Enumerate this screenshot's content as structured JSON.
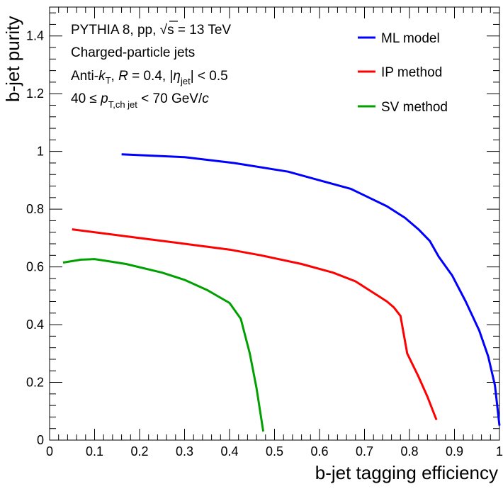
{
  "chart_data": {
    "type": "line",
    "xlabel": "b-jet tagging efficiency",
    "ylabel": "b-jet purity",
    "xlim": [
      0,
      1
    ],
    "ylim": [
      0,
      1.5
    ],
    "x_ticks": [
      "0",
      "0.1",
      "0.2",
      "0.3",
      "0.4",
      "0.5",
      "0.6",
      "0.7",
      "0.8",
      "0.9",
      "1"
    ],
    "y_ticks": [
      "0",
      "0.2",
      "0.4",
      "0.6",
      "0.8",
      "1",
      "1.2",
      "1.4"
    ],
    "grid": false,
    "legend_position": "top-right",
    "annotations": {
      "line1_pre": "PYTHIA 8, pp, ",
      "line1_sqrt": "√",
      "line1_s": "s",
      "line1_post": " = 13 TeV",
      "line2": "Charged-particle jets",
      "line3_anti": "Anti-",
      "line3_k": "k",
      "line3_ksub": "T",
      "line3_sep": ", ",
      "line3_R": "R",
      "line3_Rval": " = 0.4, |",
      "line3_eta": "η",
      "line3_etasub": "jet",
      "line3_end": "| < 0.5",
      "line4_pre": "40 ≤ ",
      "line4_p": "p",
      "line4_psub": "T,ch jet",
      "line4_mid": " < 70 GeV/",
      "line4_c": "c"
    },
    "series": [
      {
        "name": "ML model",
        "color": "#0000ff",
        "points": [
          [
            0.16,
            0.99
          ],
          [
            0.3,
            0.98
          ],
          [
            0.41,
            0.96
          ],
          [
            0.53,
            0.93
          ],
          [
            0.6,
            0.9
          ],
          [
            0.67,
            0.87
          ],
          [
            0.71,
            0.84
          ],
          [
            0.75,
            0.81
          ],
          [
            0.79,
            0.77
          ],
          [
            0.82,
            0.73
          ],
          [
            0.845,
            0.69
          ],
          [
            0.865,
            0.635
          ],
          [
            0.895,
            0.57
          ],
          [
            0.925,
            0.48
          ],
          [
            0.955,
            0.38
          ],
          [
            0.975,
            0.29
          ],
          [
            0.99,
            0.19
          ],
          [
            1.0,
            0.05
          ]
        ]
      },
      {
        "name": "IP method",
        "color": "#ff0000",
        "points": [
          [
            0.05,
            0.73
          ],
          [
            0.2,
            0.7
          ],
          [
            0.3,
            0.68
          ],
          [
            0.4,
            0.66
          ],
          [
            0.47,
            0.64
          ],
          [
            0.56,
            0.61
          ],
          [
            0.63,
            0.58
          ],
          [
            0.68,
            0.55
          ],
          [
            0.7,
            0.53
          ],
          [
            0.73,
            0.5
          ],
          [
            0.75,
            0.48
          ],
          [
            0.765,
            0.46
          ],
          [
            0.78,
            0.43
          ],
          [
            0.795,
            0.3
          ],
          [
            0.82,
            0.22
          ],
          [
            0.84,
            0.15
          ],
          [
            0.86,
            0.07
          ]
        ]
      },
      {
        "name": "SV method",
        "color": "#00a000",
        "points": [
          [
            0.03,
            0.615
          ],
          [
            0.07,
            0.625
          ],
          [
            0.1,
            0.627
          ],
          [
            0.13,
            0.62
          ],
          [
            0.17,
            0.61
          ],
          [
            0.25,
            0.58
          ],
          [
            0.3,
            0.555
          ],
          [
            0.35,
            0.52
          ],
          [
            0.4,
            0.475
          ],
          [
            0.425,
            0.42
          ],
          [
            0.445,
            0.3
          ],
          [
            0.46,
            0.18
          ],
          [
            0.475,
            0.03
          ]
        ]
      }
    ]
  }
}
